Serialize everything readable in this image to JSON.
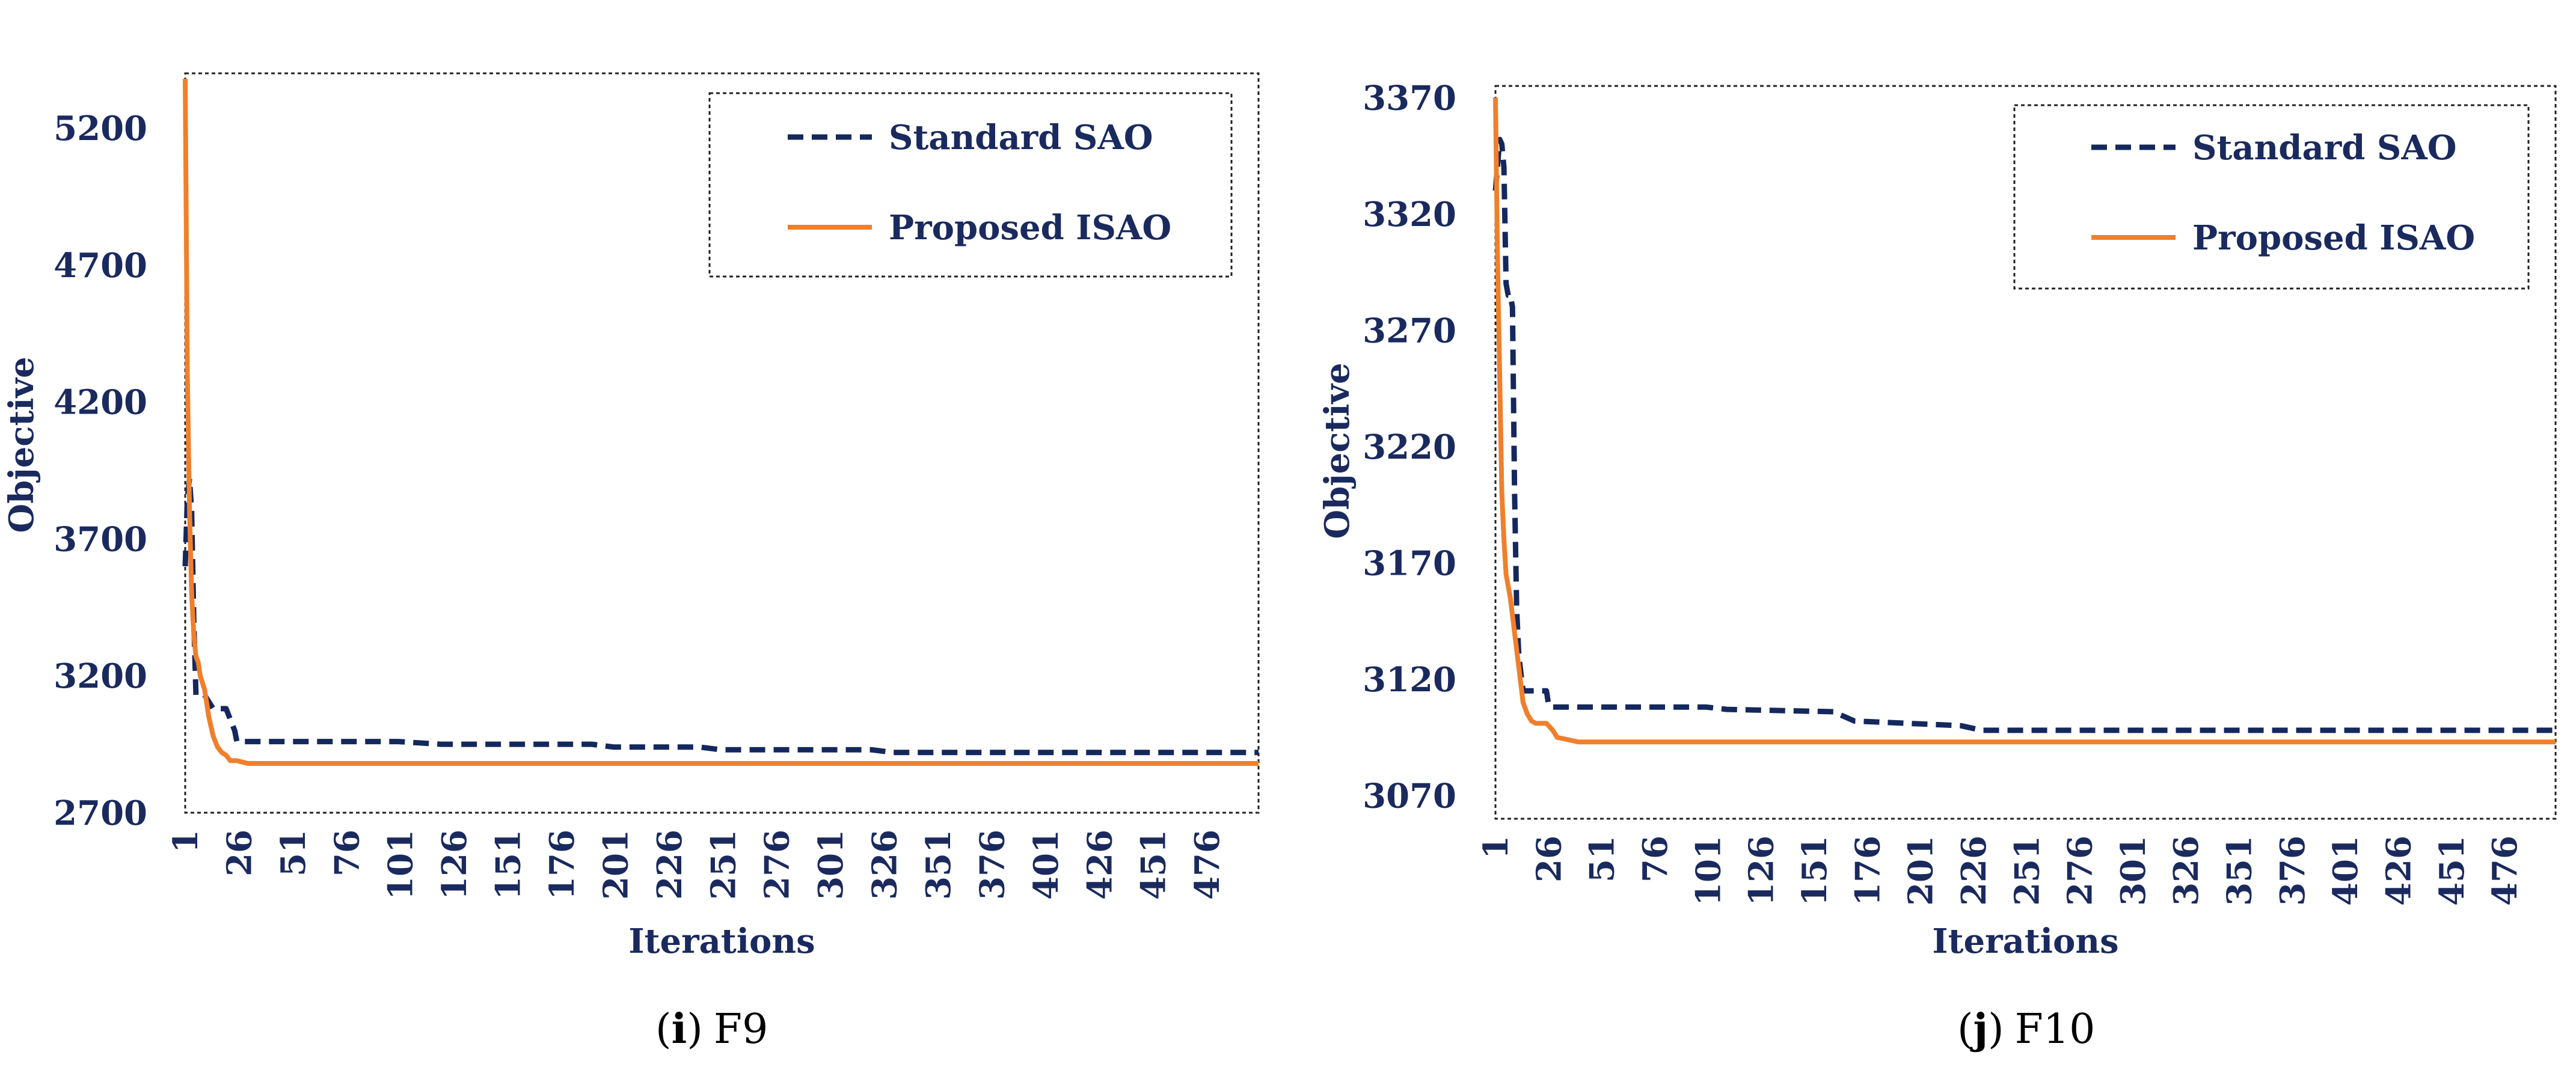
{
  "colors": {
    "sao": "#14285e",
    "isao": "#f07f2c",
    "text": "#1a2a5e",
    "frame": "#222222"
  },
  "x_tick_labels": [
    "1",
    "26",
    "51",
    "76",
    "101",
    "126",
    "151",
    "176",
    "201",
    "226",
    "251",
    "276",
    "301",
    "326",
    "351",
    "376",
    "401",
    "426",
    "451",
    "476"
  ],
  "chart_data": [
    {
      "type": "line",
      "panel": "i",
      "caption": {
        "letter": "i",
        "open": "(",
        "close": ")",
        "label": "F9"
      },
      "xlabel": "Iterations",
      "ylabel": "Objective",
      "xlim": [
        1,
        500
      ],
      "ylim": [
        2700,
        5400
      ],
      "yticks": [
        2700,
        3200,
        3700,
        4200,
        4700,
        5200
      ],
      "legend_position": "top-right",
      "series": [
        {
          "name": "Standard SAO",
          "style": "dashed",
          "x": [
            1,
            2,
            3,
            4,
            5,
            6,
            8,
            10,
            14,
            15,
            20,
            24,
            25,
            27,
            30,
            60,
            100,
            120,
            150,
            190,
            200,
            240,
            250,
            320,
            330,
            500
          ],
          "y": [
            3600,
            3850,
            3920,
            3800,
            3400,
            3130,
            3130,
            3130,
            3080,
            3080,
            3080,
            3000,
            2960,
            2960,
            2960,
            2960,
            2960,
            2950,
            2950,
            2950,
            2940,
            2940,
            2930,
            2930,
            2920,
            2920
          ]
        },
        {
          "name": "Proposed ISAO",
          "style": "solid",
          "x": [
            1,
            2,
            3,
            4,
            5,
            6,
            7,
            8,
            10,
            12,
            14,
            16,
            18,
            20,
            22,
            25,
            30,
            500
          ],
          "y": [
            5380,
            4300,
            3800,
            3500,
            3350,
            3270,
            3250,
            3200,
            3150,
            3050,
            2980,
            2940,
            2920,
            2910,
            2890,
            2890,
            2880,
            2880
          ]
        }
      ]
    },
    {
      "type": "line",
      "panel": "j",
      "caption": {
        "letter": "j",
        "open": "(",
        "close": ")",
        "label": "F10"
      },
      "xlabel": "Iterations",
      "ylabel": "Objective",
      "xlim": [
        1,
        500
      ],
      "ylim": [
        3060,
        3375
      ],
      "yticks": [
        3070,
        3120,
        3170,
        3220,
        3270,
        3320,
        3370
      ],
      "legend_position": "top-right",
      "series": [
        {
          "name": "Standard SAO",
          "style": "dashed",
          "x": [
            1,
            3,
            4,
            5,
            6,
            7,
            8,
            9,
            10,
            11,
            12,
            14,
            16,
            18,
            20,
            25,
            26,
            27,
            100,
            110,
            160,
            170,
            220,
            230,
            500
          ],
          "y": [
            3330,
            3352,
            3350,
            3340,
            3290,
            3285,
            3285,
            3280,
            3200,
            3150,
            3130,
            3115,
            3115,
            3115,
            3115,
            3115,
            3109,
            3108,
            3108,
            3107,
            3106,
            3102,
            3100,
            3098,
            3098
          ]
        },
        {
          "name": "Proposed ISAO",
          "style": "solid",
          "x": [
            1,
            2,
            3,
            4,
            5,
            6,
            8,
            10,
            12,
            14,
            16,
            18,
            20,
            25,
            28,
            30,
            35,
            40,
            500
          ],
          "y": [
            3370,
            3300,
            3250,
            3200,
            3180,
            3165,
            3155,
            3140,
            3125,
            3110,
            3105,
            3102,
            3101,
            3101,
            3098,
            3095,
            3094,
            3093,
            3093
          ]
        }
      ]
    }
  ]
}
